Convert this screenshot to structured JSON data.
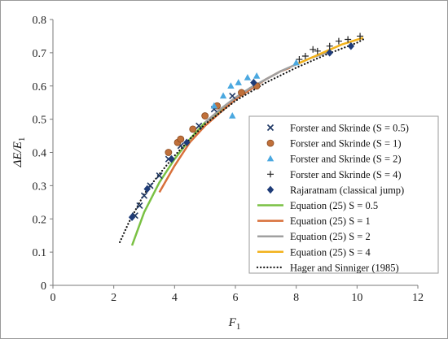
{
  "chart_data": {
    "type": "scatter",
    "xlabel_main": "F",
    "xlabel_sub": "1",
    "ylabel_main": "ΔE/E",
    "ylabel_sub": "1",
    "xlim": [
      0,
      12
    ],
    "ylim": [
      0,
      0.8
    ],
    "xticks": [
      "0",
      "2",
      "4",
      "6",
      "8",
      "10",
      "12"
    ],
    "yticks": [
      "0",
      "0.1",
      "0.2",
      "0.3",
      "0.4",
      "0.5",
      "0.6",
      "0.7",
      "0.8"
    ],
    "grid": false,
    "legend_position": "bottom-right",
    "series": [
      {
        "name": "Forster and Skrinde (S = 0.5)",
        "kind": "marker",
        "marker": "x",
        "color": "#1f3864",
        "points": [
          [
            2.7,
            0.21
          ],
          [
            2.85,
            0.24
          ],
          [
            3.0,
            0.27
          ],
          [
            3.2,
            0.3
          ],
          [
            3.5,
            0.33
          ],
          [
            3.8,
            0.38
          ],
          [
            4.2,
            0.42
          ],
          [
            4.8,
            0.48
          ],
          [
            5.3,
            0.53
          ],
          [
            5.9,
            0.57
          ]
        ]
      },
      {
        "name": "Forster and Skrinde (S = 1)",
        "kind": "marker",
        "marker": "circle",
        "color": "#c0703a",
        "points": [
          [
            3.8,
            0.4
          ],
          [
            4.1,
            0.43
          ],
          [
            4.2,
            0.44
          ],
          [
            4.6,
            0.47
          ],
          [
            5.0,
            0.51
          ],
          [
            5.4,
            0.54
          ],
          [
            6.2,
            0.58
          ],
          [
            6.7,
            0.6
          ]
        ]
      },
      {
        "name": "Forster and Skrinde (S = 2)",
        "kind": "marker",
        "marker": "triangle",
        "color": "#4aa8e0",
        "points": [
          [
            5.3,
            0.54
          ],
          [
            5.6,
            0.57
          ],
          [
            5.85,
            0.6
          ],
          [
            5.9,
            0.51
          ],
          [
            6.1,
            0.61
          ],
          [
            6.4,
            0.625
          ],
          [
            6.7,
            0.63
          ],
          [
            8.0,
            0.67
          ]
        ]
      },
      {
        "name": "Forster and Skrinde (S = 4)",
        "kind": "marker",
        "marker": "plus",
        "color": "#222222",
        "points": [
          [
            8.1,
            0.68
          ],
          [
            8.3,
            0.69
          ],
          [
            8.55,
            0.71
          ],
          [
            8.7,
            0.705
          ],
          [
            9.1,
            0.72
          ],
          [
            9.4,
            0.735
          ],
          [
            9.7,
            0.74
          ],
          [
            10.1,
            0.75
          ]
        ]
      },
      {
        "name": "Rajaratnam (classical jump)",
        "kind": "marker",
        "marker": "diamond",
        "color": "#1f3c78",
        "points": [
          [
            2.6,
            0.205
          ],
          [
            3.1,
            0.29
          ],
          [
            3.9,
            0.38
          ],
          [
            4.4,
            0.43
          ],
          [
            6.6,
            0.61
          ],
          [
            9.1,
            0.7
          ],
          [
            9.8,
            0.72
          ]
        ]
      },
      {
        "name": "Equation (25) S = 0.5",
        "kind": "line",
        "style": "solid",
        "color": "#7ac143",
        "width": 2.5,
        "points": [
          [
            2.6,
            0.12
          ],
          [
            3.0,
            0.22
          ],
          [
            3.5,
            0.31
          ],
          [
            4.0,
            0.38
          ],
          [
            4.5,
            0.44
          ],
          [
            5.0,
            0.49
          ],
          [
            5.5,
            0.525
          ],
          [
            6.0,
            0.56
          ]
        ]
      },
      {
        "name": "Equation (25) S = 1",
        "kind": "line",
        "style": "solid",
        "color": "#d8703a",
        "width": 2.5,
        "points": [
          [
            3.5,
            0.28
          ],
          [
            4.0,
            0.36
          ],
          [
            4.5,
            0.43
          ],
          [
            5.0,
            0.48
          ],
          [
            5.5,
            0.52
          ],
          [
            6.0,
            0.56
          ],
          [
            6.5,
            0.59
          ],
          [
            7.0,
            0.62
          ],
          [
            7.5,
            0.645
          ],
          [
            7.8,
            0.655
          ]
        ]
      },
      {
        "name": "Equation (25) S = 2",
        "kind": "line",
        "style": "solid",
        "color": "#a0a0a0",
        "width": 2.5,
        "points": [
          [
            5.0,
            0.49
          ],
          [
            5.5,
            0.53
          ],
          [
            6.0,
            0.565
          ],
          [
            6.5,
            0.595
          ],
          [
            7.0,
            0.62
          ],
          [
            7.5,
            0.645
          ],
          [
            8.0,
            0.665
          ],
          [
            8.5,
            0.685
          ],
          [
            9.0,
            0.7
          ]
        ]
      },
      {
        "name": "Equation (25) S = 4",
        "kind": "line",
        "style": "solid",
        "color": "#f2b21c",
        "width": 2.5,
        "points": [
          [
            8.0,
            0.665
          ],
          [
            8.5,
            0.685
          ],
          [
            9.0,
            0.705
          ],
          [
            9.5,
            0.725
          ],
          [
            10.2,
            0.745
          ]
        ]
      },
      {
        "name": "Hager and Sinniger (1985)",
        "kind": "line",
        "style": "dotted",
        "color": "#111111",
        "width": 2.2,
        "points": [
          [
            2.2,
            0.13
          ],
          [
            2.5,
            0.19
          ],
          [
            3.0,
            0.275
          ],
          [
            3.5,
            0.335
          ],
          [
            4.0,
            0.39
          ],
          [
            4.5,
            0.44
          ],
          [
            5.0,
            0.485
          ],
          [
            6.0,
            0.555
          ],
          [
            7.0,
            0.61
          ],
          [
            8.0,
            0.655
          ],
          [
            9.0,
            0.695
          ],
          [
            10.0,
            0.73
          ],
          [
            10.2,
            0.74
          ]
        ]
      }
    ]
  }
}
